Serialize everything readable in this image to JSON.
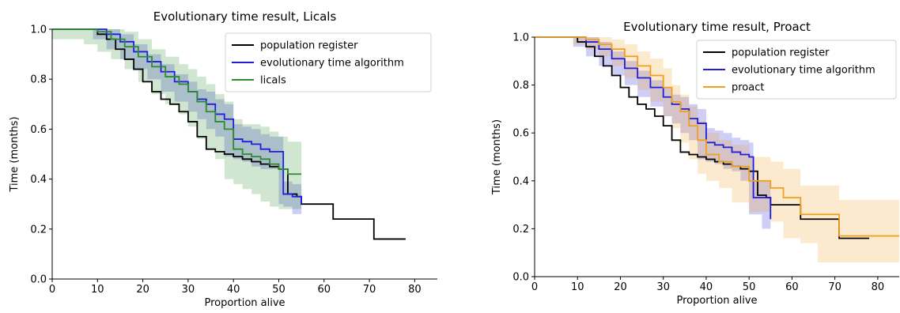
{
  "chart_data": [
    {
      "type": "line",
      "title": "Evolutionary time result, Licals",
      "xlabel": "Proportion alive",
      "ylabel": "Time (months)",
      "xlim": [
        0,
        85
      ],
      "ylim": [
        0,
        1.0
      ],
      "x_ticks": [
        0,
        10,
        20,
        30,
        40,
        50,
        60,
        70,
        80
      ],
      "y_ticks": [
        0.0,
        0.2,
        0.4,
        0.6,
        0.8,
        1.0
      ],
      "grid": false,
      "legend_position": "top-right",
      "series": [
        {
          "name": "population register",
          "color": "#000000",
          "x": [
            0,
            7,
            10,
            12,
            14,
            16,
            18,
            20,
            22,
            24,
            26,
            28,
            30,
            32,
            34,
            36,
            38,
            40,
            42,
            44,
            46,
            48,
            50,
            52,
            54,
            55,
            62,
            71,
            78
          ],
          "y": [
            1.0,
            1.0,
            0.98,
            0.96,
            0.92,
            0.88,
            0.84,
            0.79,
            0.75,
            0.72,
            0.7,
            0.67,
            0.63,
            0.57,
            0.52,
            0.51,
            0.5,
            0.49,
            0.48,
            0.47,
            0.46,
            0.45,
            0.44,
            0.34,
            0.33,
            0.3,
            0.24,
            0.16,
            0.16
          ]
        },
        {
          "name": "evolutionary time algorithm",
          "color": "#1f1fdb",
          "x": [
            0,
            9,
            12,
            15,
            18,
            21,
            24,
            27,
            30,
            32,
            34,
            36,
            38,
            40,
            42,
            44,
            46,
            48,
            50,
            51,
            53,
            55
          ],
          "y": [
            1.0,
            1.0,
            0.98,
            0.95,
            0.91,
            0.87,
            0.83,
            0.79,
            0.75,
            0.72,
            0.7,
            0.66,
            0.64,
            0.56,
            0.55,
            0.54,
            0.52,
            0.51,
            0.51,
            0.34,
            0.33,
            0.3
          ],
          "band_lower": [
            1.0,
            1.0,
            0.96,
            0.92,
            0.88,
            0.84,
            0.8,
            0.75,
            0.71,
            0.67,
            0.64,
            0.6,
            0.57,
            0.49,
            0.48,
            0.47,
            0.45,
            0.44,
            0.44,
            0.3,
            0.29,
            0.26
          ],
          "band_upper": [
            1.0,
            1.0,
            1.0,
            0.98,
            0.94,
            0.9,
            0.86,
            0.82,
            0.79,
            0.76,
            0.75,
            0.72,
            0.7,
            0.62,
            0.61,
            0.6,
            0.58,
            0.57,
            0.57,
            0.39,
            0.38,
            0.35
          ]
        },
        {
          "name": "licals",
          "color": "#2e8b2e",
          "x": [
            0,
            7,
            10,
            13,
            16,
            19,
            22,
            25,
            28,
            30,
            32,
            34,
            36,
            38,
            40,
            42,
            44,
            46,
            48,
            50,
            52,
            55
          ],
          "y": [
            1.0,
            1.0,
            0.99,
            0.96,
            0.93,
            0.89,
            0.85,
            0.81,
            0.78,
            0.75,
            0.71,
            0.67,
            0.63,
            0.6,
            0.52,
            0.5,
            0.49,
            0.48,
            0.46,
            0.44,
            0.42,
            0.42
          ],
          "band_lower": [
            1.0,
            0.96,
            0.94,
            0.91,
            0.88,
            0.84,
            0.79,
            0.74,
            0.7,
            0.66,
            0.61,
            0.56,
            0.52,
            0.48,
            0.4,
            0.38,
            0.36,
            0.34,
            0.31,
            0.29,
            0.28,
            0.28
          ],
          "band_upper": [
            1.0,
            1.0,
            1.0,
            1.0,
            0.99,
            0.96,
            0.92,
            0.89,
            0.86,
            0.84,
            0.81,
            0.78,
            0.74,
            0.71,
            0.64,
            0.62,
            0.62,
            0.61,
            0.59,
            0.57,
            0.55,
            0.55
          ]
        }
      ]
    },
    {
      "type": "line",
      "title": "Evolutionary time result, Proact",
      "xlabel": "Proportion alive",
      "ylabel": "Time (months)",
      "xlim": [
        0,
        85
      ],
      "ylim": [
        0,
        1.0
      ],
      "x_ticks": [
        0,
        10,
        20,
        30,
        40,
        50,
        60,
        70,
        80
      ],
      "y_ticks": [
        0.0,
        0.2,
        0.4,
        0.6,
        0.8,
        1.0
      ],
      "grid": false,
      "legend_position": "top-right",
      "series": [
        {
          "name": "population register",
          "color": "#000000",
          "x": [
            0,
            7,
            10,
            12,
            14,
            16,
            18,
            20,
            22,
            24,
            26,
            28,
            30,
            32,
            34,
            36,
            38,
            40,
            42,
            44,
            46,
            48,
            50,
            52,
            54,
            55,
            62,
            71,
            78
          ],
          "y": [
            1.0,
            1.0,
            0.98,
            0.96,
            0.92,
            0.88,
            0.84,
            0.79,
            0.75,
            0.72,
            0.7,
            0.67,
            0.63,
            0.57,
            0.52,
            0.51,
            0.5,
            0.49,
            0.48,
            0.47,
            0.46,
            0.45,
            0.44,
            0.34,
            0.33,
            0.3,
            0.24,
            0.16,
            0.16
          ]
        },
        {
          "name": "evolutionary time algorithm",
          "color": "#1f1fdb",
          "x": [
            0,
            9,
            12,
            15,
            18,
            21,
            24,
            27,
            30,
            32,
            34,
            36,
            38,
            40,
            42,
            44,
            46,
            48,
            50,
            51,
            53,
            55
          ],
          "y": [
            1.0,
            1.0,
            0.98,
            0.95,
            0.91,
            0.87,
            0.83,
            0.79,
            0.75,
            0.72,
            0.7,
            0.66,
            0.64,
            0.56,
            0.55,
            0.54,
            0.52,
            0.51,
            0.5,
            0.33,
            0.33,
            0.24
          ],
          "band_lower": [
            1.0,
            1.0,
            0.96,
            0.92,
            0.88,
            0.84,
            0.8,
            0.75,
            0.71,
            0.67,
            0.64,
            0.6,
            0.57,
            0.49,
            0.48,
            0.47,
            0.45,
            0.44,
            0.4,
            0.26,
            0.26,
            0.2
          ],
          "band_upper": [
            1.0,
            1.0,
            1.0,
            0.98,
            0.94,
            0.9,
            0.86,
            0.82,
            0.79,
            0.76,
            0.75,
            0.72,
            0.7,
            0.62,
            0.61,
            0.6,
            0.58,
            0.57,
            0.56,
            0.4,
            0.4,
            0.3
          ]
        },
        {
          "name": "proact",
          "color": "#f0a020",
          "x": [
            0,
            9,
            12,
            15,
            18,
            21,
            24,
            27,
            30,
            32,
            34,
            36,
            38,
            40,
            43,
            46,
            50,
            55,
            58,
            62,
            66,
            71,
            75,
            80,
            85
          ],
          "y": [
            1.0,
            1.0,
            0.99,
            0.97,
            0.95,
            0.92,
            0.88,
            0.84,
            0.79,
            0.73,
            0.69,
            0.63,
            0.57,
            0.51,
            0.48,
            0.46,
            0.4,
            0.37,
            0.33,
            0.26,
            0.26,
            0.17,
            0.17,
            0.17,
            0.17
          ],
          "band_lower": [
            1.0,
            1.0,
            0.97,
            0.95,
            0.92,
            0.88,
            0.83,
            0.78,
            0.73,
            0.67,
            0.62,
            0.56,
            0.49,
            0.43,
            0.4,
            0.37,
            0.31,
            0.27,
            0.23,
            0.16,
            0.14,
            0.06,
            0.06,
            0.06,
            0.06
          ],
          "band_upper": [
            1.0,
            1.0,
            1.0,
            1.0,
            0.99,
            0.97,
            0.94,
            0.91,
            0.87,
            0.8,
            0.76,
            0.71,
            0.65,
            0.6,
            0.57,
            0.55,
            0.5,
            0.48,
            0.45,
            0.38,
            0.38,
            0.32,
            0.32,
            0.32,
            0.32
          ]
        }
      ]
    }
  ]
}
